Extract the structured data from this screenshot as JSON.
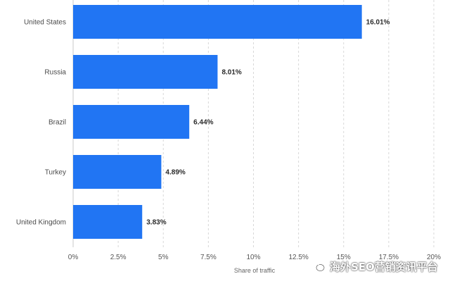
{
  "chart_data": {
    "type": "bar",
    "orientation": "horizontal",
    "categories": [
      "United States",
      "Russia",
      "Brazil",
      "Turkey",
      "United Kingdom"
    ],
    "values": [
      16.01,
      8.01,
      6.44,
      4.89,
      3.83
    ],
    "data_labels": [
      "16.01%",
      "8.01%",
      "6.44%",
      "4.89%",
      "3.83%"
    ],
    "xlabel": "Share of traffic",
    "ylabel": "",
    "xlim": [
      0,
      20
    ],
    "x_ticks": [
      0,
      2.5,
      5,
      7.5,
      10,
      12.5,
      15,
      17.5,
      20
    ],
    "x_tick_labels": [
      "0%",
      "2.5%",
      "5%",
      "7.5%",
      "10%",
      "12.5%",
      "15%",
      "17.5%",
      "20%"
    ],
    "grid": "vertical dashed",
    "bar_color": "#2175f3",
    "grid_color": "#d8d8d8"
  },
  "watermark": {
    "text": "海外SEO营销资讯平台",
    "icon": "wechat-icon"
  }
}
